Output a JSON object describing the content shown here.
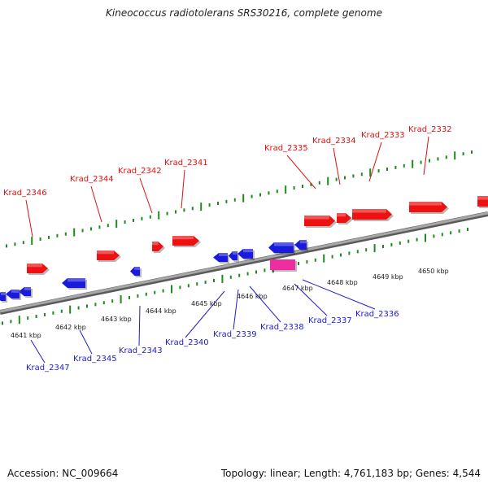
{
  "header": {
    "title": "Kineococcus radiotolerans SRS30216, complete genome"
  },
  "footer": {
    "accession": "Accession: NC_009664",
    "summary": "Topology: linear; Length: 4,761,183 bp; Genes: 4,544"
  },
  "colors": {
    "forward_gene": "#ee1111",
    "reverse_gene": "#1a1adc",
    "rna_gene": "#ee2ea0",
    "backbone": "#8c8c8c",
    "tick": "#1d8a1d",
    "forward_label": "#dd1111",
    "reverse_label": "#1d1dcc"
  },
  "scale_labels": [
    "4641 kbp",
    "4642 kbp",
    "4643 kbp",
    "4644 kbp",
    "4645 kbp",
    "4646 kbp",
    "4647 kbp",
    "4648 kbp",
    "4649 kbp",
    "4650 kbp"
  ],
  "forward_genes": [
    "Krad_2346",
    "Krad_2344",
    "Krad_2342",
    "Krad_2341",
    "Krad_2335",
    "Krad_2334",
    "Krad_2333",
    "Krad_2332"
  ],
  "reverse_genes": [
    "Krad_2347",
    "Krad_2345",
    "Krad_2343",
    "Krad_2340",
    "Krad_2339",
    "Krad_2338",
    "Krad_2337",
    "Krad_2336"
  ]
}
